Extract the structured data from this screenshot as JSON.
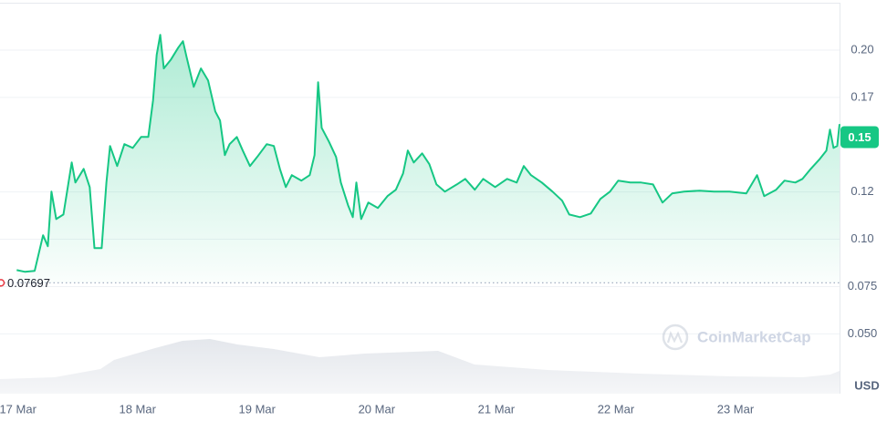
{
  "chart_data": {
    "type": "line",
    "xlim": [
      16.85,
      23.87
    ],
    "ylim": [
      0.028,
      0.2265
    ],
    "xticks": [
      {
        "value": 17,
        "label": "17 Mar"
      },
      {
        "value": 18,
        "label": "18 Mar"
      },
      {
        "value": 19,
        "label": "19 Mar"
      },
      {
        "value": 20,
        "label": "20 Mar"
      },
      {
        "value": 21,
        "label": "21 Mar"
      },
      {
        "value": 22,
        "label": "22 Mar"
      },
      {
        "value": 23,
        "label": "23 Mar"
      }
    ],
    "yticks": [
      {
        "value": 0.2,
        "label": "0.20"
      },
      {
        "value": 0.175,
        "label": "0.17"
      },
      {
        "value": 0.125,
        "label": "0.12"
      },
      {
        "value": 0.1,
        "label": "0.10"
      },
      0.075,
      {
        "value": 0.05,
        "label": "0.050"
      }
    ],
    "grid": true,
    "current_price": {
      "value": 0.154,
      "label": "0.15"
    },
    "open_price": 0.07697,
    "currency_label": "USD",
    "watermark": "CoinMarketCap",
    "series": [
      {
        "color": "#16c784",
        "x": [
          16.99,
          17.06,
          17.14,
          17.21,
          17.25,
          17.28,
          17.32,
          17.38,
          17.45,
          17.48,
          17.55,
          17.6,
          17.64,
          17.7,
          17.74,
          17.77,
          17.83,
          17.89,
          17.96,
          18.03,
          18.09,
          18.13,
          18.16,
          18.19,
          18.22,
          18.28,
          18.34,
          18.38,
          18.41,
          18.47,
          18.53,
          18.59,
          18.65,
          18.69,
          18.73,
          18.77,
          18.83,
          18.88,
          18.94,
          19.0,
          19.08,
          19.14,
          19.19,
          19.24,
          19.29,
          19.37,
          19.44,
          19.48,
          19.51,
          19.54,
          19.6,
          19.66,
          19.7,
          19.76,
          19.8,
          19.83,
          19.87,
          19.93,
          20.01,
          20.09,
          20.16,
          20.22,
          20.26,
          20.31,
          20.38,
          20.44,
          20.5,
          20.57,
          20.67,
          20.74,
          20.82,
          20.89,
          20.99,
          21.09,
          21.17,
          21.23,
          21.29,
          21.38,
          21.47,
          21.55,
          21.61,
          21.7,
          21.79,
          21.87,
          21.95,
          22.02,
          22.12,
          22.21,
          22.31,
          22.39,
          22.47,
          22.57,
          22.7,
          22.82,
          22.95,
          23.09,
          23.18,
          23.24,
          23.34,
          23.41,
          23.5,
          23.56,
          23.63,
          23.7,
          23.76,
          23.79,
          23.82,
          23.85,
          23.87
        ],
        "values": [
          0.0837,
          0.0828,
          0.0833,
          0.1021,
          0.0963,
          0.1252,
          0.1107,
          0.1131,
          0.1406,
          0.13,
          0.1372,
          0.1276,
          0.0953,
          0.0953,
          0.13,
          0.1493,
          0.1387,
          0.1503,
          0.1483,
          0.1541,
          0.1541,
          0.1734,
          0.1975,
          0.2081,
          0.1903,
          0.1951,
          0.2013,
          0.2047,
          0.1965,
          0.1806,
          0.1903,
          0.184,
          0.1676,
          0.1628,
          0.1445,
          0.1503,
          0.1541,
          0.1469,
          0.1387,
          0.1435,
          0.1503,
          0.1493,
          0.1372,
          0.1276,
          0.1339,
          0.131,
          0.1339,
          0.1445,
          0.183,
          0.1589,
          0.1517,
          0.1435,
          0.13,
          0.118,
          0.1117,
          0.13,
          0.1107,
          0.1194,
          0.1165,
          0.1228,
          0.1262,
          0.1348,
          0.1469,
          0.1406,
          0.1454,
          0.1397,
          0.129,
          0.1252,
          0.129,
          0.1319,
          0.1262,
          0.1319,
          0.1276,
          0.1319,
          0.13,
          0.1387,
          0.1339,
          0.13,
          0.1252,
          0.1204,
          0.1131,
          0.1117,
          0.1136,
          0.1213,
          0.1252,
          0.131,
          0.13,
          0.13,
          0.129,
          0.1194,
          0.1242,
          0.1252,
          0.1257,
          0.1252,
          0.1252,
          0.1242,
          0.1339,
          0.1228,
          0.1262,
          0.131,
          0.13,
          0.1319,
          0.1372,
          0.1421,
          0.1469,
          0.158,
          0.1483,
          0.1493,
          0.1609
        ]
      }
    ]
  }
}
